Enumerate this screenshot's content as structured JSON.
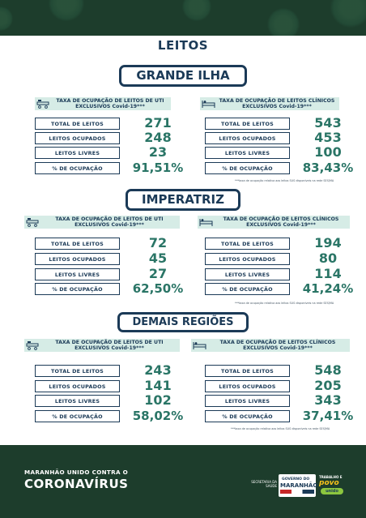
{
  "page_title": "LEITOS",
  "col_headers": {
    "uti": "TAXA DE OCUPAÇÃO DE LEITOS DE UTI EXCLUSIVOS Covid-19***",
    "clinicos": "TAXA DE OCUPAÇÃO DE LEITOS CLÍNICOS EXCLUSIVOS Covid-19***"
  },
  "row_labels": [
    "TOTAL DE LEITOS",
    "LEITOS OCUPADOS",
    "LEITOS LIVRES",
    "% DE OCUPAÇÃO"
  ],
  "note": "***taxa de ocupação relativa aos leitos SUS disponíveis na rede SES/MA",
  "regions": [
    {
      "name": "GRANDE ILHA",
      "uti": [
        "271",
        "248",
        "23",
        "91,51%"
      ],
      "clinicos": [
        "543",
        "453",
        "100",
        "83,43%"
      ]
    },
    {
      "name": "IMPERATRIZ",
      "uti": [
        "72",
        "45",
        "27",
        "62,50%"
      ],
      "clinicos": [
        "194",
        "80",
        "114",
        "41,24%"
      ]
    },
    {
      "name": "DEMAIS REGIÕES",
      "uti": [
        "243",
        "141",
        "102",
        "58,02%"
      ],
      "clinicos": [
        "548",
        "205",
        "343",
        "37,41%"
      ]
    }
  ],
  "footer": {
    "tagline_1": "MARANHÃO UNIDO CONTRA O",
    "tagline_2": "CORONAVÍRUS",
    "secretaria": "SECRETARIA DA SAÚDE",
    "gov_line_1": "GOVERNO DO",
    "gov_line_2": "MARANHÃO",
    "povo_line_1": "TRABALHO E",
    "povo_line_2": "povo",
    "povo_line_3": "unido"
  },
  "colors": {
    "navy": "#1b3a57",
    "teal_value": "#2a7566",
    "band_green": "#1d3d2c",
    "header_tint": "#d6ece6"
  }
}
